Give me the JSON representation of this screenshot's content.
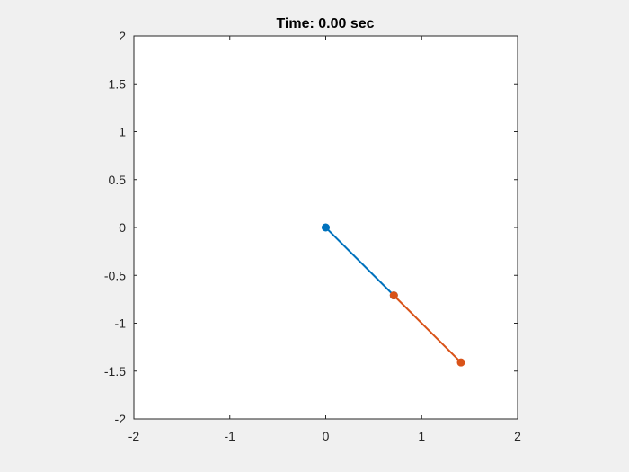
{
  "chart_data": {
    "type": "line",
    "title": "Time: 0.00 sec",
    "xlabel": "",
    "ylabel": "",
    "xlim": [
      -2,
      2
    ],
    "ylim": [
      -2,
      2
    ],
    "xticks": [
      -2,
      -1,
      0,
      1,
      2
    ],
    "xtick_labels": [
      "-2",
      "-1",
      "0",
      "1",
      "2"
    ],
    "yticks": [
      2,
      1.5,
      1,
      0.5,
      0,
      -0.5,
      -1,
      -1.5,
      -2
    ],
    "ytick_labels": [
      "2",
      "1.5",
      "1",
      "0.5",
      "0",
      "-0.5",
      "-1",
      "-1.5",
      "-2"
    ],
    "grid": false,
    "axis_equal": true,
    "series": [
      {
        "x": [
          0,
          0.71
        ],
        "y": [
          0,
          -0.71
        ],
        "color": "#0072bd",
        "marker": "circle"
      },
      {
        "x": [
          0.71,
          1.41
        ],
        "y": [
          -0.71,
          -1.41
        ],
        "color": "#d95319",
        "marker": "circle"
      }
    ]
  },
  "colors": {
    "figure_background": "#f0f0f0",
    "axes_background": "#ffffff",
    "axes_color": "#262626"
  }
}
